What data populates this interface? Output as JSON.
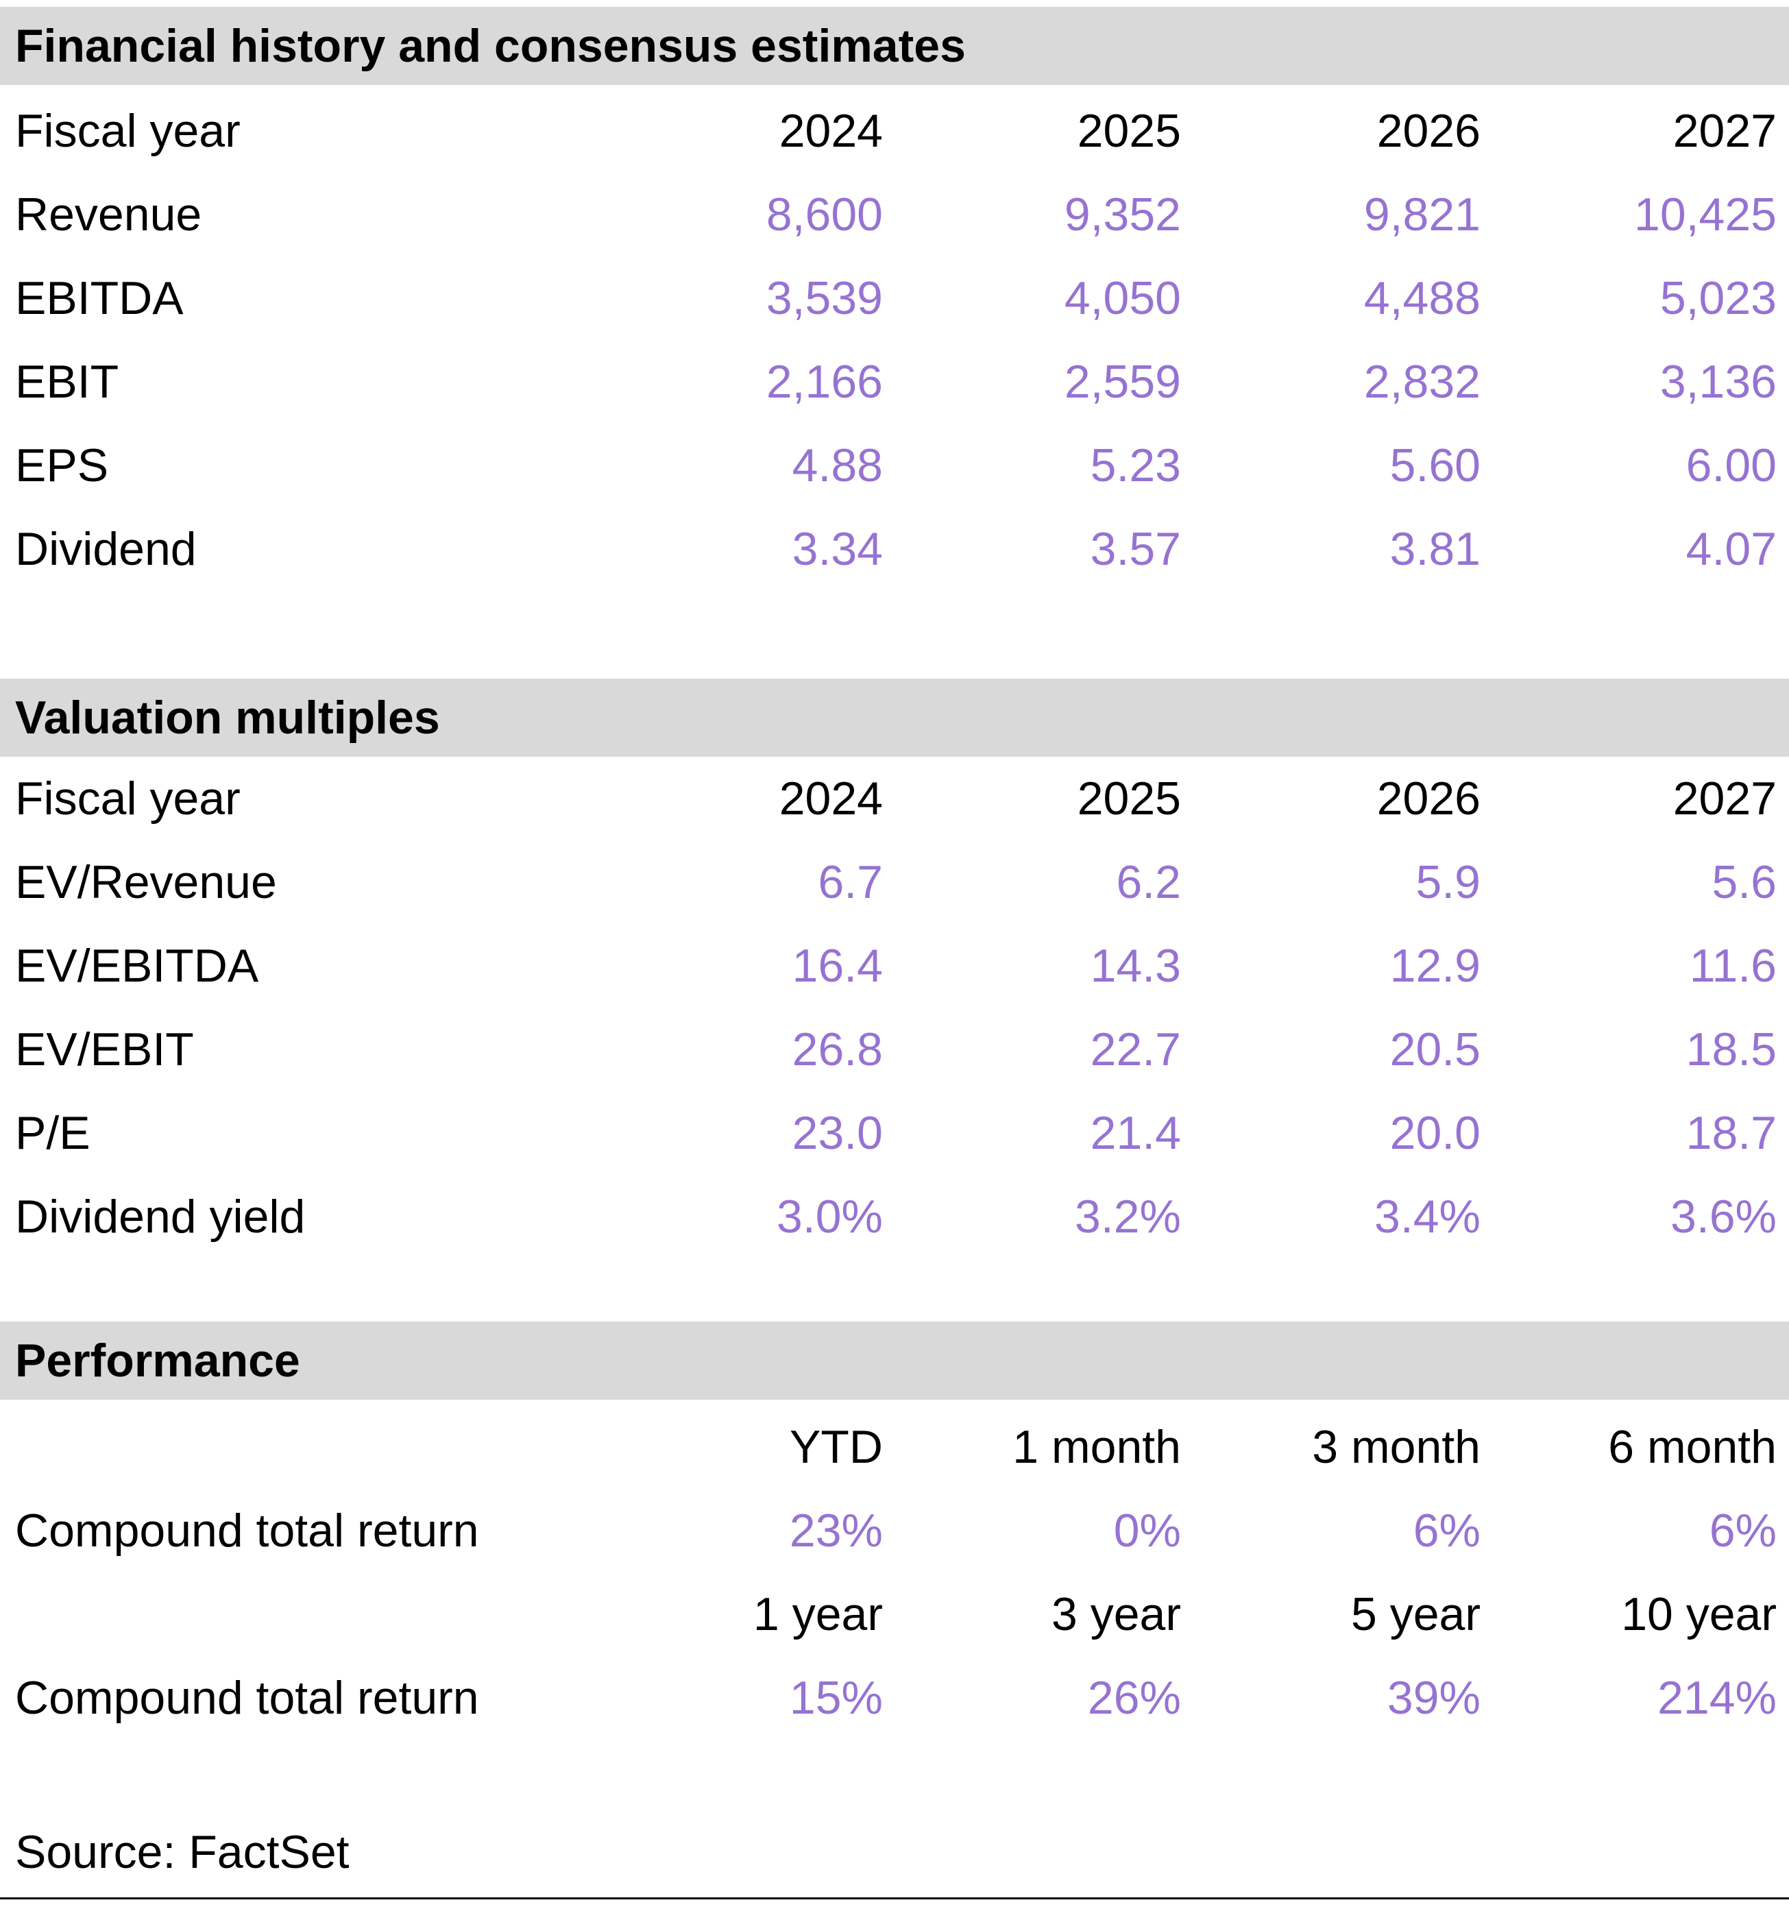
{
  "colors": {
    "value_purple": "#9673D2",
    "band_gray": "#D9D9D9",
    "text_black": "#000000"
  },
  "sections": [
    {
      "title": "Financial history and consensus estimates",
      "header": {
        "label": "Fiscal year",
        "cols": [
          "2024",
          "2025",
          "2026",
          "2027"
        ]
      },
      "rows": [
        {
          "label": "Revenue",
          "values": [
            "8,600",
            "9,352",
            "9,821",
            "10,425"
          ]
        },
        {
          "label": "EBITDA",
          "values": [
            "3,539",
            "4,050",
            "4,488",
            "5,023"
          ]
        },
        {
          "label": "EBIT",
          "values": [
            "2,166",
            "2,559",
            "2,832",
            "3,136"
          ]
        },
        {
          "label": "EPS",
          "values": [
            "4.88",
            "5.23",
            "5.60",
            "6.00"
          ]
        },
        {
          "label": "Dividend",
          "values": [
            "3.34",
            "3.57",
            "3.81",
            "4.07"
          ]
        }
      ]
    },
    {
      "title": "Valuation multiples",
      "header": {
        "label": "Fiscal year",
        "cols": [
          "2024",
          "2025",
          "2026",
          "2027"
        ]
      },
      "rows": [
        {
          "label": "EV/Revenue",
          "values": [
            "6.7",
            "6.2",
            "5.9",
            "5.6"
          ]
        },
        {
          "label": "EV/EBITDA",
          "values": [
            "16.4",
            "14.3",
            "12.9",
            "11.6"
          ]
        },
        {
          "label": "EV/EBIT",
          "values": [
            "26.8",
            "22.7",
            "20.5",
            "18.5"
          ]
        },
        {
          "label": "P/E",
          "values": [
            "23.0",
            "21.4",
            "20.0",
            "18.7"
          ]
        },
        {
          "label": "Dividend yield",
          "values": [
            "3.0%",
            "3.2%",
            "3.4%",
            "3.6%"
          ]
        }
      ]
    },
    {
      "title": "Performance",
      "blocks": [
        {
          "header": [
            "YTD",
            "1 month",
            "3 month",
            "6 month"
          ],
          "row": {
            "label": "Compound total return",
            "values": [
              "23%",
              "0%",
              "6%",
              "6%"
            ]
          }
        },
        {
          "header": [
            "1 year",
            "3 year",
            "5 year",
            "10 year"
          ],
          "row": {
            "label": "Compound total return",
            "values": [
              "15%",
              "26%",
              "39%",
              "214%"
            ]
          }
        }
      ]
    }
  ],
  "source": "Source: FactSet"
}
